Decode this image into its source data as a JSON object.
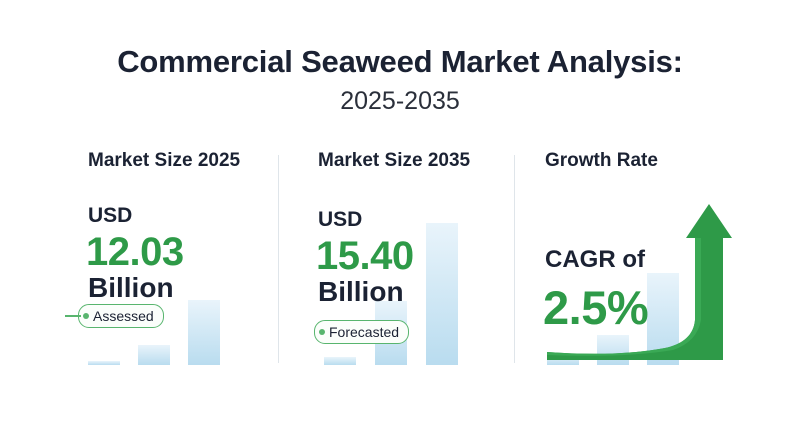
{
  "header": {
    "title": "Commercial Seaweed Market Analysis:",
    "subtitle": "2025-2035"
  },
  "panels": [
    {
      "title": "Market Size 2025",
      "currency": "USD",
      "value": "12.03",
      "unit": "Billion",
      "tag": "Assessed"
    },
    {
      "title": "Market Size 2035",
      "currency": "USD",
      "value": "15.40",
      "unit": "Billion",
      "tag": "Forecasted"
    },
    {
      "title": "Growth Rate",
      "label": "CAGR of",
      "value": "2.5%",
      "icon": "arrow-up-icon"
    }
  ],
  "colors": {
    "accent_green": "#2e9a48",
    "text_dark": "#1b2233",
    "bar_blue": "#b9dcef"
  }
}
